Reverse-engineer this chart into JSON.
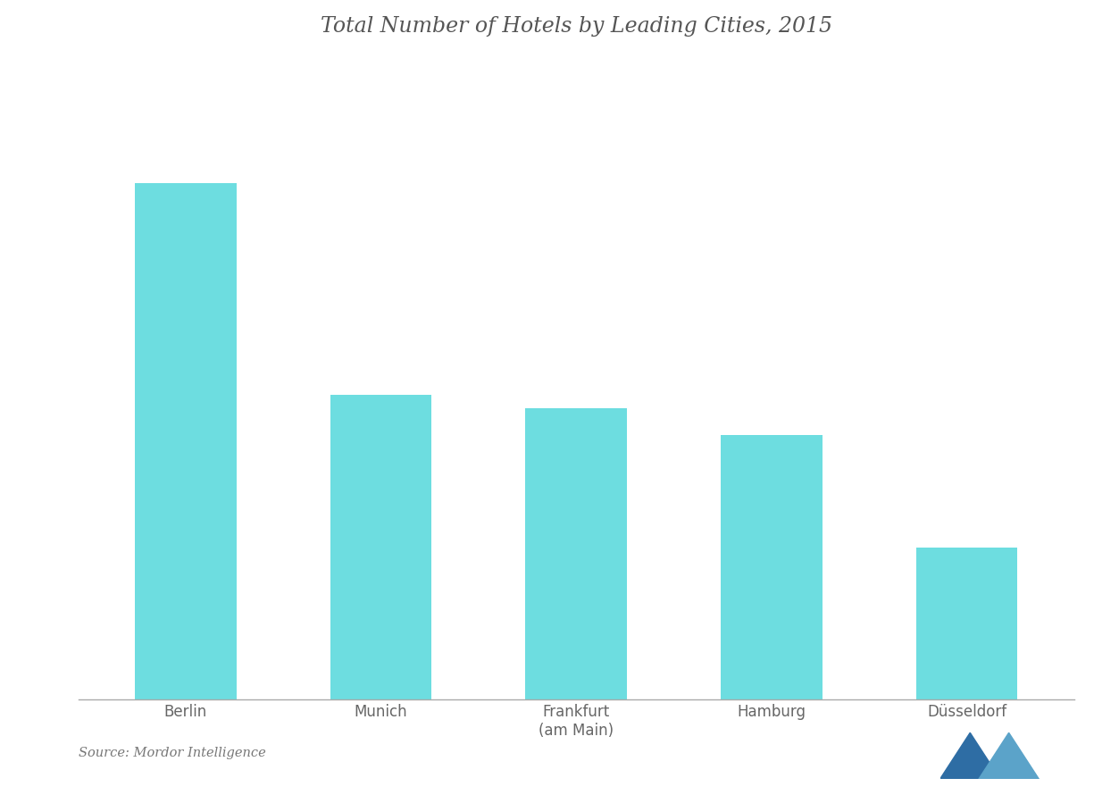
{
  "title": "Total Number of Hotels by Leading Cities, 2015",
  "categories": [
    "Berlin",
    "Munich",
    "Frankfurt\n(am Main)",
    "Hamburg",
    "Düsseldorf"
  ],
  "values": [
    780,
    460,
    440,
    400,
    230
  ],
  "bar_color": "#6DDDE0",
  "background_color": "#FFFFFF",
  "plot_bg_color": "#FFFFFF",
  "title_color": "#555555",
  "label_color": "#666666",
  "source_text": "Source: Mordor Intelligence",
  "ylim": [
    0,
    960
  ],
  "title_fontsize": 17,
  "label_fontsize": 12,
  "bar_width": 0.52,
  "spine_color": "#AAAAAA"
}
